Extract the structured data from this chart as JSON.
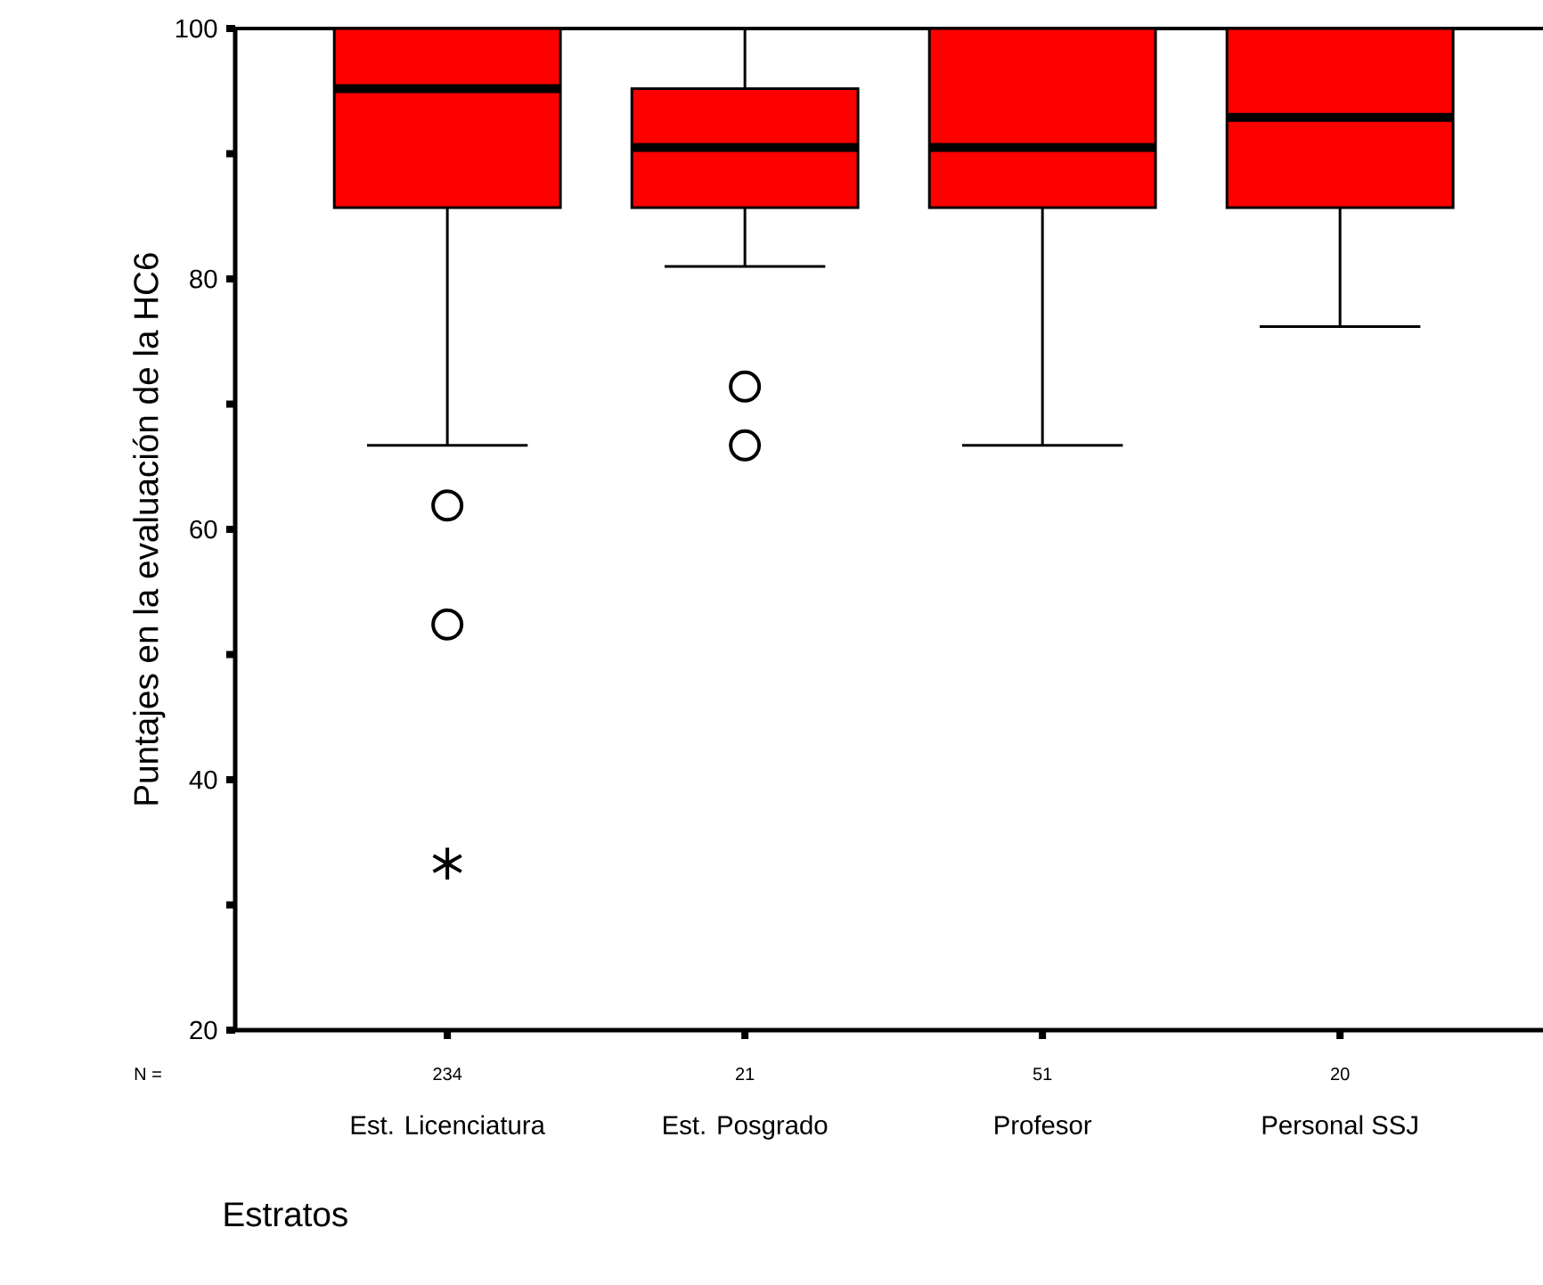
{
  "chart_data": {
    "type": "box",
    "xlabel": "Estratos",
    "ylabel": "Puntajes en la evaluación de la HC6",
    "color": "#ff0000",
    "categories": [
      "Est. Licenciatura",
      "Est. Posgrado",
      "Profesor",
      "Personal SSJ"
    ],
    "boxes": [
      {
        "low": 66.7,
        "q1": 85.7,
        "median": 95.2,
        "q3": 100,
        "high": 100,
        "outliers": [
          61.9,
          52.4,
          33.3
        ]
      },
      {
        "low": 81.0,
        "q1": 85.7,
        "median": 90.5,
        "q3": 95.2,
        "high": 100,
        "outliers": [
          71.4,
          66.7
        ]
      },
      {
        "low": 66.7,
        "q1": 85.7,
        "median": 90.5,
        "q3": 100,
        "high": 100
      },
      {
        "low": 76.2,
        "q1": 85.7,
        "median": 92.9,
        "q3": 100,
        "high": 100
      }
    ],
    "ylim": [
      20,
      100
    ],
    "yticks": [
      20,
      {
        "value": 30,
        "label": null
      },
      40,
      {
        "value": 50,
        "label": null
      },
      60,
      {
        "value": 70,
        "label": null
      },
      80,
      {
        "value": 90,
        "label": null
      },
      100
    ],
    "annotations": [
      "N =",
      "234",
      "21",
      "51",
      "20"
    ]
  }
}
